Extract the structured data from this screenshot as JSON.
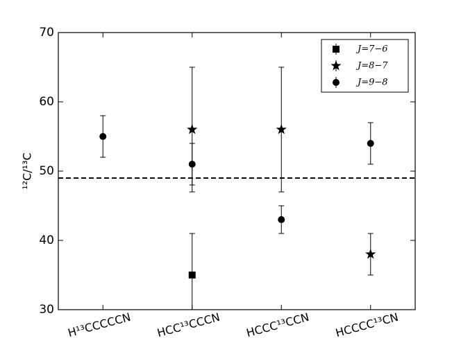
{
  "chart_data": {
    "type": "errorbar",
    "categories": [
      "H¹³CCCCCN",
      "HCC¹³CCCN",
      "HCCC¹³CCN",
      "HCCCC¹³CN"
    ],
    "y_label": "¹²C/¹³C",
    "ylim": [
      30,
      70
    ],
    "yticks": [
      30,
      40,
      50,
      60,
      70
    ],
    "hline": 49,
    "legend": "upper right",
    "series": [
      {
        "name": "J=7−6",
        "marker": "square",
        "color": "#000000",
        "values": [
          null,
          35,
          null,
          null
        ],
        "errors": [
          null,
          6,
          null,
          null
        ]
      },
      {
        "name": "J=8−7",
        "marker": "star",
        "color": "#000000",
        "values": [
          null,
          56,
          56,
          38
        ],
        "errors": [
          null,
          9,
          9,
          3
        ]
      },
      {
        "name": "J=9−8",
        "marker": "circle",
        "color": "#000000",
        "values": [
          55,
          51,
          43,
          54
        ],
        "errors": [
          3,
          3,
          2,
          3
        ]
      }
    ]
  }
}
